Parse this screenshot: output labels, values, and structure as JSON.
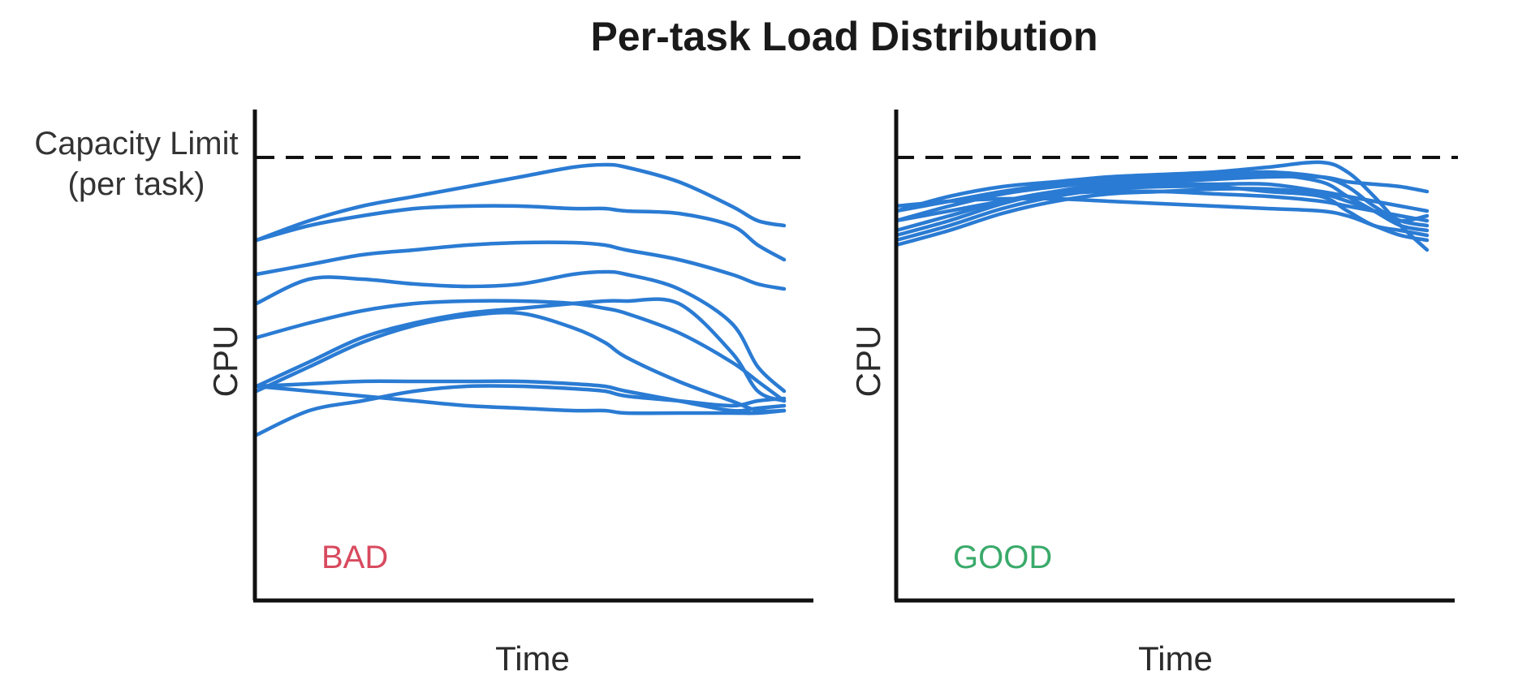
{
  "title": "Per-task Load Distribution",
  "capacity_label": [
    "Capacity Limit",
    "(per task)"
  ],
  "colors": {
    "series": "#2a7bd3",
    "bad": "#d84a5e",
    "good": "#3aaa6a",
    "axis": "#111111"
  },
  "chart_data": [
    {
      "type": "line",
      "panel": "left",
      "tag": "BAD",
      "xlabel": "Time",
      "ylabel": "CPU",
      "x_range": [
        0,
        100
      ],
      "ylim": [
        0,
        100
      ],
      "capacity_limit": 90,
      "x": [
        0,
        10,
        20,
        30,
        40,
        50,
        60,
        66,
        70,
        80,
        90,
        95,
        100
      ],
      "series": [
        {
          "values": [
            74,
            78,
            81,
            83,
            85,
            87,
            89,
            89.5,
            89,
            86,
            81,
            78,
            77
          ]
        },
        {
          "values": [
            74,
            77,
            79,
            80.5,
            81,
            81,
            80.5,
            80.5,
            80,
            79.5,
            77,
            73,
            70
          ]
        },
        {
          "values": [
            67,
            69,
            71,
            72,
            73,
            73.5,
            73.5,
            73,
            72,
            70,
            67,
            65,
            64
          ]
        },
        {
          "values": [
            61,
            66,
            66,
            65,
            64.5,
            65,
            67,
            67.5,
            67,
            64,
            57,
            48,
            43
          ]
        },
        {
          "values": [
            54,
            57,
            59.5,
            61,
            61.5,
            61.5,
            61,
            60,
            59,
            55,
            49,
            45,
            41
          ]
        },
        {
          "values": [
            43,
            48,
            53,
            56.5,
            58.5,
            59,
            56,
            53,
            50,
            45,
            41,
            39,
            39
          ]
        },
        {
          "values": [
            44,
            49,
            54,
            57,
            59,
            60,
            61,
            61.5,
            61.5,
            61,
            51,
            43,
            41
          ]
        },
        {
          "values": [
            44,
            44.5,
            45,
            45,
            45,
            45,
            44.5,
            44,
            43,
            41,
            39,
            39.5,
            40
          ]
        },
        {
          "values": [
            34,
            39,
            41,
            43,
            44,
            44,
            43.5,
            43,
            42,
            41,
            40,
            41,
            41.5
          ]
        },
        {
          "values": [
            44,
            43,
            42,
            41,
            40,
            39.5,
            39,
            39,
            38.5,
            38.5,
            38.5,
            38.5,
            39
          ]
        }
      ]
    },
    {
      "type": "line",
      "panel": "right",
      "tag": "GOOD",
      "xlabel": "Time",
      "ylabel": "CPU",
      "x_range": [
        0,
        100
      ],
      "ylim": [
        0,
        100
      ],
      "capacity_limit": 90,
      "x": [
        0,
        10,
        20,
        30,
        40,
        50,
        60,
        70,
        80,
        85,
        90,
        95,
        100
      ],
      "series": [
        {
          "values": [
            80,
            83,
            85,
            86,
            87,
            87.5,
            88,
            89,
            90,
            88,
            83,
            77,
            72
          ]
        },
        {
          "values": [
            80,
            82,
            84,
            85.5,
            86.5,
            87,
            87.5,
            88,
            87,
            85,
            81,
            78,
            77
          ]
        },
        {
          "values": [
            78,
            81,
            83.5,
            85,
            86,
            86.5,
            87,
            87.5,
            86,
            83,
            80,
            77,
            76
          ]
        },
        {
          "values": [
            76,
            79,
            82,
            84,
            85,
            85.5,
            85.5,
            85.5,
            84,
            83,
            82,
            81,
            80
          ]
        },
        {
          "values": [
            74,
            77,
            80.5,
            83,
            84.5,
            85,
            85,
            84,
            83,
            80,
            77,
            76,
            75
          ]
        },
        {
          "values": [
            73,
            76,
            79.5,
            82,
            83.5,
            84,
            84.5,
            84.5,
            83.5,
            82,
            80,
            78,
            79
          ]
        },
        {
          "values": [
            78,
            80,
            82,
            83.5,
            84,
            84,
            83.5,
            83,
            82,
            81,
            80,
            79,
            78
          ]
        },
        {
          "values": [
            81,
            82,
            82.5,
            82.5,
            82,
            81.5,
            81,
            80.5,
            80,
            79,
            77,
            75,
            74
          ]
        },
        {
          "values": [
            75,
            78,
            81.5,
            84,
            85.5,
            86,
            86.5,
            87,
            87,
            86,
            85.5,
            85,
            84
          ]
        }
      ]
    }
  ]
}
